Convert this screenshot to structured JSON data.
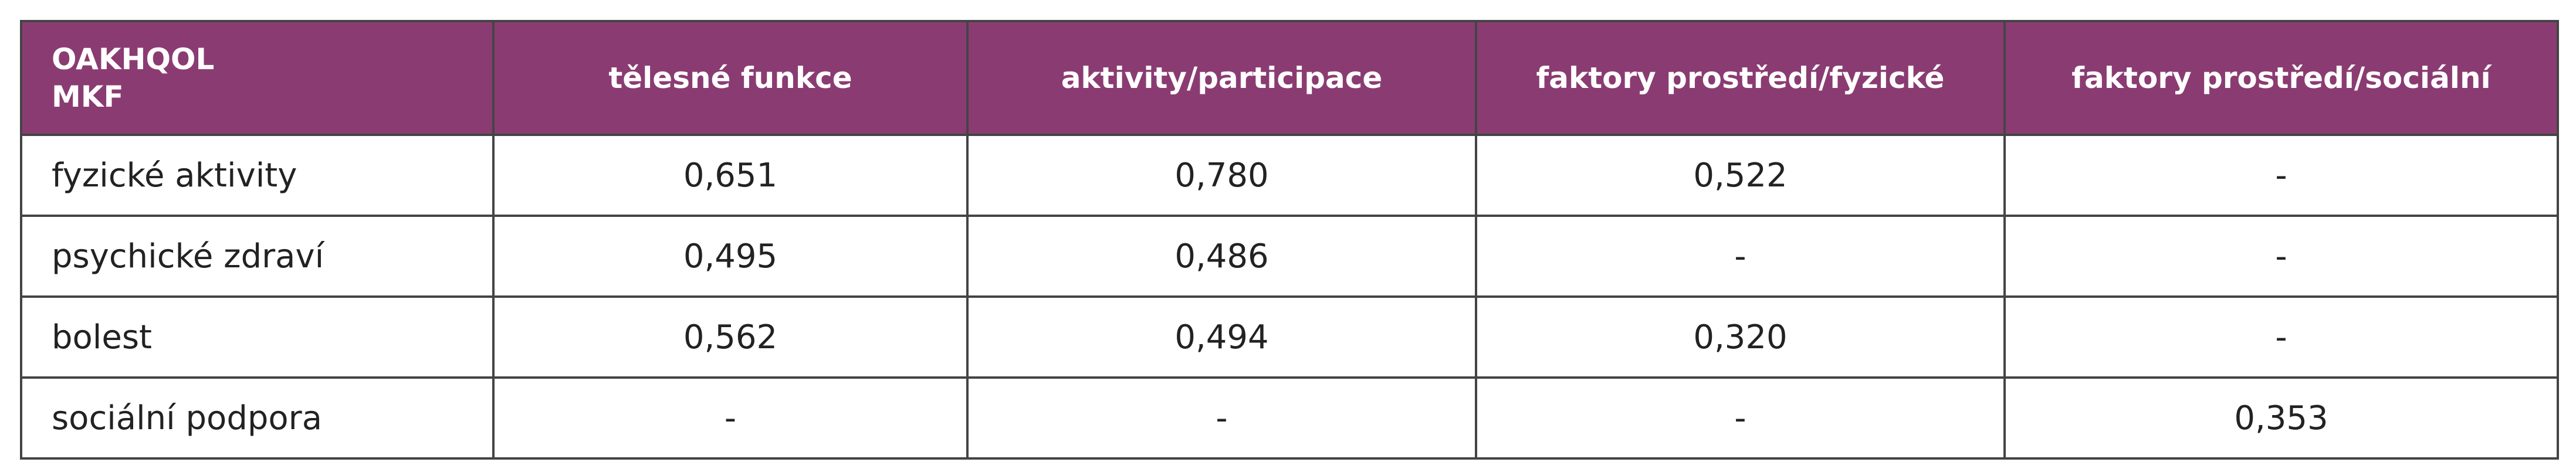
{
  "table": {
    "header": [
      [
        "OAKHQOL",
        "MKF"
      ],
      "tělesné funkce",
      "aktivity/participace",
      "faktory prostředí/fyzické",
      "faktory prostředí/sociální"
    ],
    "rows": [
      [
        "fyzické aktivity",
        "0,651",
        "0,780",
        "0,522",
        "-"
      ],
      [
        "psychické zdraví",
        "0,495",
        "0,486",
        "-",
        "-"
      ],
      [
        "bolest",
        "0,562",
        "0,494",
        "0,320",
        "-"
      ],
      [
        "sociální podpora",
        "-",
        "-",
        "-",
        "0,353"
      ]
    ]
  }
}
